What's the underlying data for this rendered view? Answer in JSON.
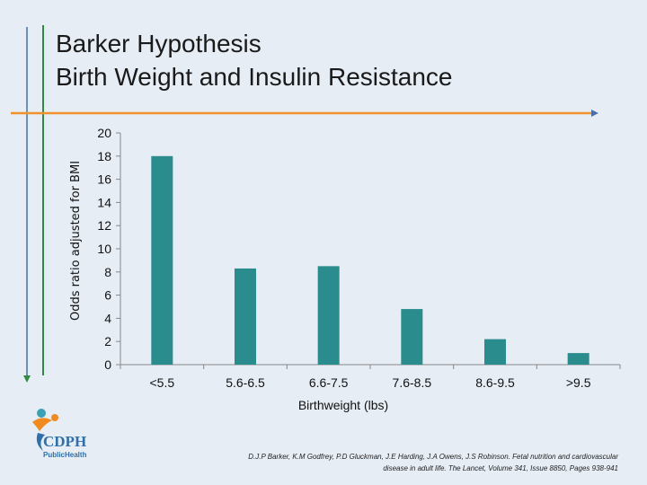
{
  "slide": {
    "title_line1": "Barker Hypothesis",
    "title_line2": "Birth Weight and Insulin Resistance",
    "citation_line1": "D.J.P Barker, K.M Godfrey, P.D Gluckman, J.E Harding, J.A Owens, J.S Robinson. Fetal nutrition and cardiovascular",
    "citation_line2": "disease in adult life. The Lancet, Volume 341, Issue 8850, Pages 938-941",
    "logo": {
      "text_main": "CDPH",
      "text_sub": "PublicHealth",
      "colors": {
        "orange": "#f28a1e",
        "blue": "#2f6fae",
        "teal": "#3aa0b5"
      }
    },
    "accent_colors": {
      "orange_rule": "#f0922b",
      "green_rule": "#2e8b3f",
      "blue_rule": "#4a6fa5"
    }
  },
  "chart_data": {
    "type": "bar",
    "categories": [
      "<5.5",
      "5.6-6.5",
      "6.6-7.5",
      "7.6-8.5",
      "8.6-9.5",
      ">9.5"
    ],
    "values": [
      18,
      8.3,
      8.5,
      4.8,
      2.2,
      1.0
    ],
    "xlabel": "Birthweight (lbs)",
    "ylabel": "Odds ratio adjusted for BMI",
    "ylim": [
      0,
      20
    ],
    "yticks": [
      0,
      2,
      4,
      6,
      8,
      10,
      12,
      14,
      16,
      18,
      20
    ],
    "bar_color": "#2a8c8c",
    "grid": false,
    "legend": "none"
  }
}
